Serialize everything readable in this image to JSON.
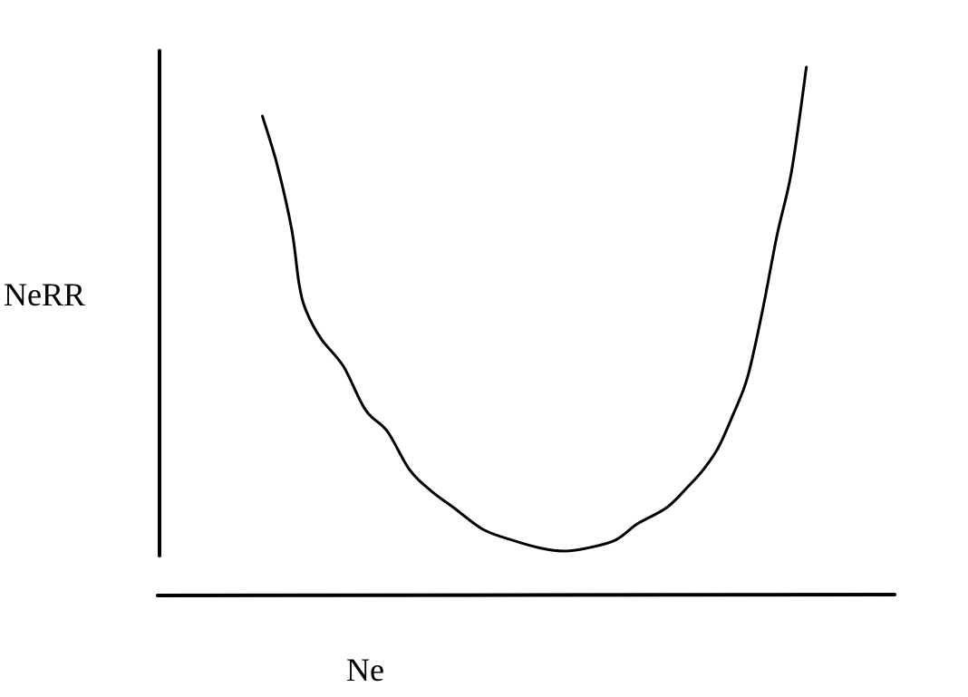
{
  "chart_data": {
    "type": "line",
    "title": "",
    "xlabel": "Ne",
    "ylabel": "NeRR",
    "ticks": "none",
    "grid": false,
    "legend": "none",
    "line_color": "#000000",
    "axis_color": "#000000",
    "background": "#ffffff",
    "xlim": [
      0,
      1
    ],
    "ylim": [
      0,
      1
    ],
    "series": [
      {
        "x": [
          0.14,
          0.16,
          0.18,
          0.19,
          0.2,
          0.22,
          0.25,
          0.28,
          0.31,
          0.34,
          0.37,
          0.4,
          0.44,
          0.48,
          0.52,
          0.55,
          0.58,
          0.62,
          0.65,
          0.69,
          0.72,
          0.74,
          0.76,
          0.78,
          0.8,
          0.82,
          0.84,
          0.86,
          0.88
        ],
        "y": [
          0.88,
          0.79,
          0.67,
          0.57,
          0.52,
          0.47,
          0.42,
          0.34,
          0.3,
          0.23,
          0.19,
          0.16,
          0.12,
          0.1,
          0.085,
          0.08,
          0.085,
          0.1,
          0.13,
          0.16,
          0.2,
          0.23,
          0.27,
          0.33,
          0.4,
          0.52,
          0.66,
          0.78,
          0.97
        ]
      }
    ]
  }
}
